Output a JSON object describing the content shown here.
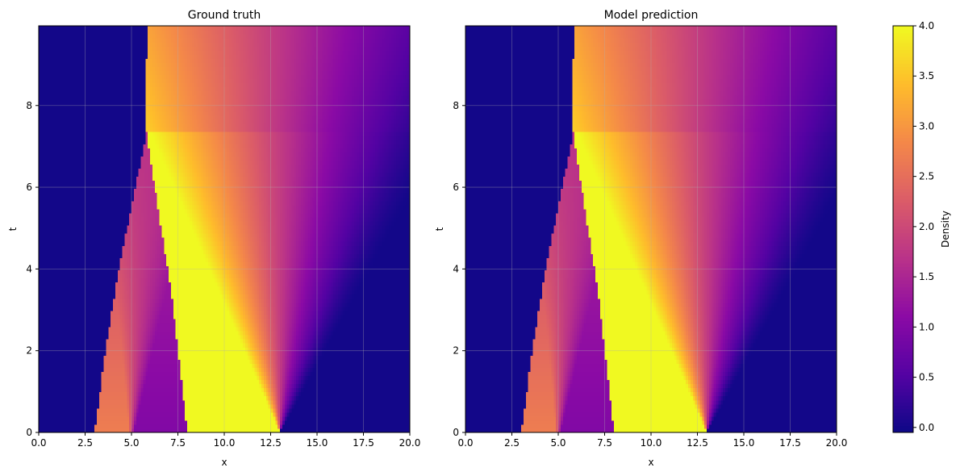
{
  "chart_data": [
    {
      "type": "heatmap",
      "title": "Ground truth",
      "xlabel": "x",
      "ylabel": "t",
      "xlim": [
        0,
        20
      ],
      "ylim": [
        0,
        9.95
      ],
      "xticks": [
        0,
        2.5,
        5,
        7.5,
        10,
        12.5,
        15,
        17.5,
        20
      ],
      "xtick_labels": [
        "0.0",
        "2.5",
        "5.0",
        "7.5",
        "10.0",
        "12.5",
        "15.0",
        "17.5",
        "20.0"
      ],
      "yticks": [
        0,
        2,
        4,
        6,
        8
      ],
      "ytick_labels": [
        "0",
        "2",
        "4",
        "6",
        "8"
      ],
      "grid": true,
      "colormap": "plasma",
      "value_range": [
        -0.05,
        4.0
      ],
      "initial_condition": [
        {
          "x_from": 0,
          "x_to": 3,
          "density": 0
        },
        {
          "x_from": 3,
          "x_to": 5,
          "density": 2.7
        },
        {
          "x_from": 5,
          "x_to": 8,
          "density": 1.0
        },
        {
          "x_from": 8,
          "x_to": 13,
          "density": 4.0
        },
        {
          "x_from": 13,
          "x_to": 20,
          "density": 0
        }
      ],
      "features": {
        "left_front": [
          [
            3.0,
            0
          ],
          [
            3.6,
            2
          ],
          [
            4.3,
            4
          ],
          [
            5.0,
            5.5
          ],
          [
            5.8,
            7.35
          ]
        ],
        "shock": [
          [
            8.0,
            0
          ],
          [
            7.5,
            2
          ],
          [
            7.1,
            3.6
          ],
          [
            6.6,
            5
          ],
          [
            5.8,
            7.35
          ]
        ],
        "merged_front": [
          [
            5.8,
            7.35
          ],
          [
            5.75,
            8
          ],
          [
            5.8,
            9
          ],
          [
            5.9,
            9.95
          ]
        ],
        "rarefaction_center": [
          5,
          0
        ],
        "expansion_origin": [
          13,
          0
        ],
        "expansion_fan_edge": [
          [
            13,
            0
          ],
          [
            20,
            5.8
          ]
        ]
      }
    },
    {
      "type": "heatmap",
      "title": "Model prediction",
      "xlabel": "x",
      "ylabel": "t",
      "xlim": [
        0,
        20
      ],
      "ylim": [
        0,
        9.95
      ],
      "xticks": [
        0,
        2.5,
        5,
        7.5,
        10,
        12.5,
        15,
        17.5,
        20
      ],
      "xtick_labels": [
        "0.0",
        "2.5",
        "5.0",
        "7.5",
        "10.0",
        "12.5",
        "15.0",
        "17.5",
        "20.0"
      ],
      "yticks": [
        0,
        2,
        4,
        6,
        8
      ],
      "ytick_labels": [
        "0",
        "2",
        "4",
        "6",
        "8"
      ],
      "grid": true,
      "colormap": "plasma",
      "value_range": [
        -0.05,
        4.0
      ],
      "initial_condition": [
        {
          "x_from": 0,
          "x_to": 3,
          "density": 0
        },
        {
          "x_from": 3,
          "x_to": 5,
          "density": 2.7
        },
        {
          "x_from": 5,
          "x_to": 8,
          "density": 1.0
        },
        {
          "x_from": 8,
          "x_to": 13,
          "density": 4.0
        },
        {
          "x_from": 13,
          "x_to": 20,
          "density": 0
        }
      ],
      "features": {
        "left_front": [
          [
            3.0,
            0
          ],
          [
            3.6,
            2
          ],
          [
            4.3,
            4
          ],
          [
            5.0,
            5.5
          ],
          [
            5.8,
            7.35
          ]
        ],
        "shock": [
          [
            8.0,
            0
          ],
          [
            7.5,
            2
          ],
          [
            7.1,
            3.6
          ],
          [
            6.6,
            5
          ],
          [
            5.8,
            7.35
          ]
        ],
        "merged_front": [
          [
            5.8,
            7.35
          ],
          [
            5.75,
            8
          ],
          [
            5.8,
            9
          ],
          [
            5.9,
            9.95
          ]
        ],
        "rarefaction_center": [
          5,
          0
        ],
        "expansion_origin": [
          13,
          0
        ],
        "expansion_fan_edge": [
          [
            13,
            0
          ],
          [
            20,
            5.8
          ]
        ]
      }
    }
  ],
  "colorbar": {
    "label": "Density",
    "ticks": [
      0.0,
      0.5,
      1.0,
      1.5,
      2.0,
      2.5,
      3.0,
      3.5,
      4.0
    ],
    "tick_labels": [
      "0.0",
      "0.5",
      "1.0",
      "1.5",
      "2.0",
      "2.5",
      "3.0",
      "3.5",
      "4.0"
    ],
    "range": [
      -0.05,
      4.0
    ],
    "colormap": "plasma"
  }
}
